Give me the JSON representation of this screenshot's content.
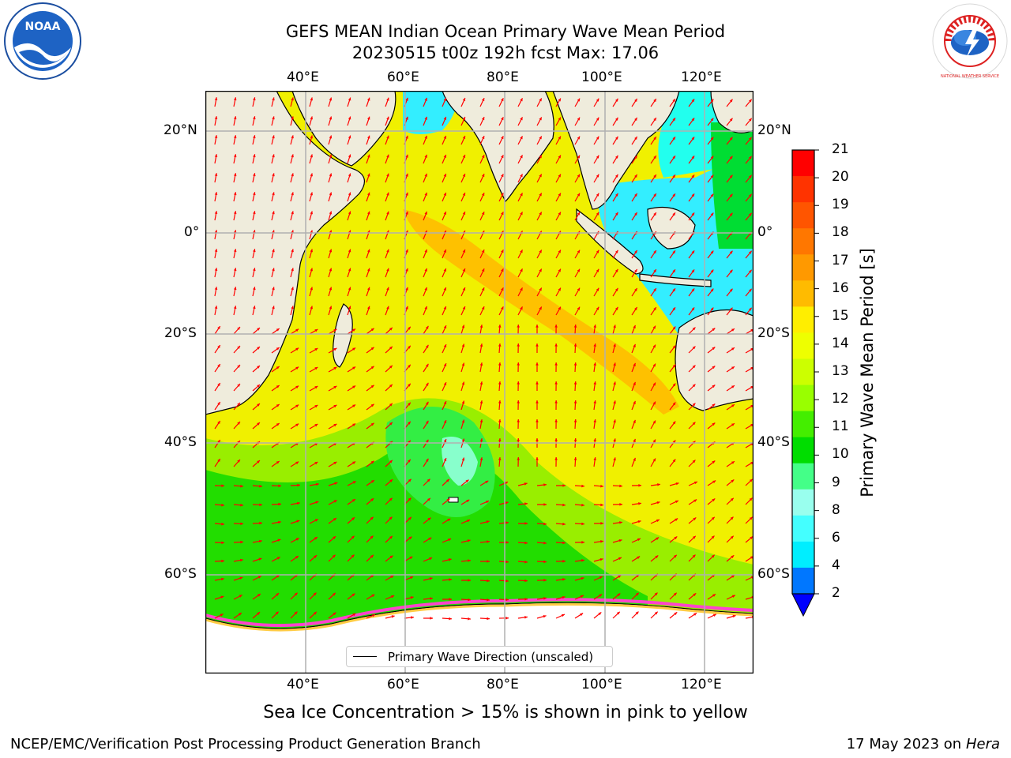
{
  "title": {
    "line1": "GEFS MEAN Indian Ocean Primary Wave Mean Period",
    "line2": "20230515 t00z 192h fcst   Max: 17.06"
  },
  "logos": {
    "left": "NOAA",
    "right": "NATIONAL WEATHER SERVICE"
  },
  "map": {
    "lon_ticks_top": [
      "40°E",
      "60°E",
      "80°E",
      "100°E",
      "120°E"
    ],
    "lon_ticks_bottom": [
      "40°E",
      "60°E",
      "80°E",
      "100°E",
      "120°E"
    ],
    "lat_ticks_left": [
      "20°N",
      "0°",
      "20°S",
      "40°S",
      "60°S"
    ],
    "lat_ticks_right": [
      "20°N",
      "0°",
      "20°S",
      "40°S",
      "60°S"
    ],
    "legend_label": "Primary Wave Direction (unscaled)",
    "land_color": "#efecdc",
    "arrow_color": "#ff0000"
  },
  "colorbar": {
    "label": "Primary Wave Mean Period [s]",
    "ticks": [
      "21",
      "20",
      "19",
      "18",
      "17",
      "16",
      "15",
      "14",
      "13",
      "12",
      "11",
      "10",
      "9",
      "8",
      "6",
      "4",
      "2"
    ],
    "colors_top_to_bottom": [
      "#ff0000",
      "#ff3300",
      "#ff5500",
      "#ff7700",
      "#ff9900",
      "#ffbb00",
      "#ffee00",
      "#eeff00",
      "#ccff00",
      "#99ff00",
      "#44ee00",
      "#00dd00",
      "#44ff88",
      "#99ffee",
      "#44ffff",
      "#00eeff",
      "#0077ff"
    ],
    "extend_color": "#0000ff"
  },
  "caption": "Sea Ice Concentration > 15% is shown in pink to yellow",
  "footer": {
    "left": "NCEP/EMC/Verification Post Processing Product Generation Branch",
    "right_prefix": "17 May 2023 on",
    "right_host": "Hera"
  }
}
